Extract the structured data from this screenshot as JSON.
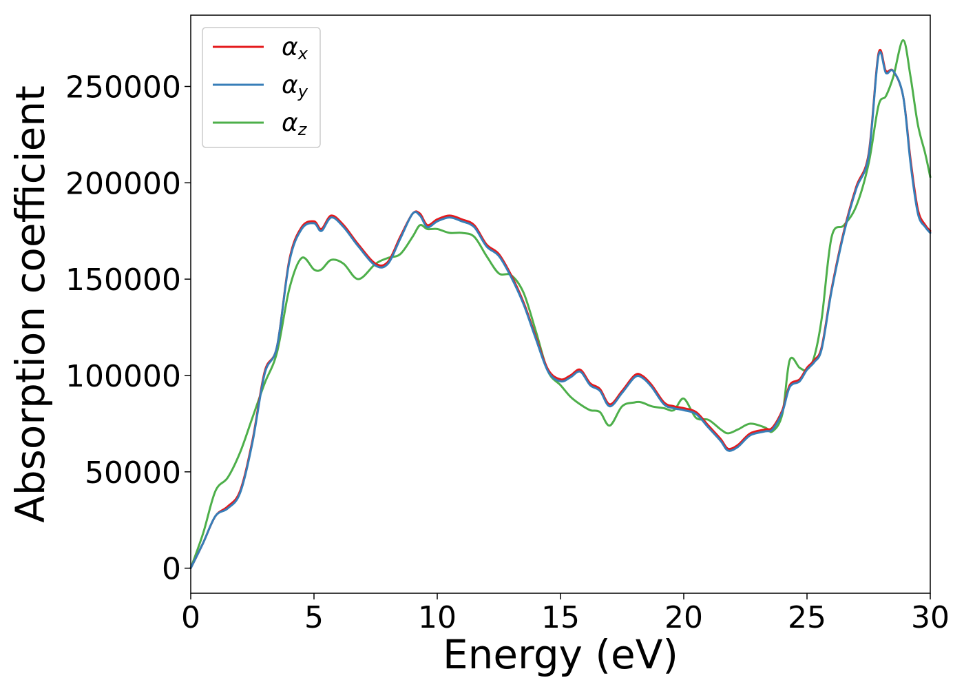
{
  "chart_data": {
    "type": "line",
    "xlabel": "Energy (eV)",
    "ylabel": "Absorption coefficient",
    "xlim": [
      0,
      30
    ],
    "ylim": [
      -13000,
      287000
    ],
    "xticks": [
      0,
      5,
      10,
      15,
      20,
      25,
      30
    ],
    "xtick_labels": [
      "0",
      "5",
      "10",
      "15",
      "20",
      "25",
      "30"
    ],
    "yticks": [
      0,
      50000,
      100000,
      150000,
      200000,
      250000
    ],
    "ytick_labels": [
      "0",
      "50000",
      "100000",
      "150000",
      "200000",
      "250000"
    ],
    "grid": false,
    "legend_position": "top-left",
    "series": [
      {
        "name": "αx",
        "symbol": "α",
        "subscript": "x",
        "color": "#e41a1c",
        "x": [
          0,
          0.5,
          1.0,
          1.5,
          2.0,
          2.5,
          3.0,
          3.5,
          4.0,
          4.5,
          5.0,
          5.3,
          5.7,
          6.2,
          6.8,
          7.5,
          8.0,
          8.5,
          9.0,
          9.3,
          9.6,
          10.0,
          10.5,
          11.0,
          11.5,
          12.0,
          12.5,
          13.0,
          13.5,
          14.0,
          14.5,
          15.0,
          15.4,
          15.8,
          16.2,
          16.6,
          17.0,
          17.5,
          18.0,
          18.3,
          18.7,
          19.2,
          19.6,
          20.0,
          20.5,
          21.0,
          21.5,
          21.8,
          22.2,
          22.7,
          23.3,
          23.6,
          24.0,
          24.3,
          24.7,
          25.0,
          25.3,
          25.6,
          26.0,
          26.5,
          27.0,
          27.5,
          27.9,
          28.2,
          28.5,
          28.9,
          29.2,
          29.5,
          29.8,
          30.0
        ],
        "values": [
          0,
          13000,
          27000,
          32000,
          40000,
          66000,
          102000,
          115000,
          160000,
          177000,
          180000,
          176000,
          183000,
          178000,
          168000,
          158000,
          159000,
          172000,
          184000,
          184000,
          178000,
          181000,
          183000,
          181000,
          178000,
          168000,
          163000,
          152000,
          138000,
          120000,
          103000,
          98000,
          100000,
          103000,
          96000,
          93000,
          85000,
          92000,
          100000,
          100000,
          95000,
          86000,
          84000,
          83000,
          81000,
          74000,
          67000,
          62000,
          64000,
          70000,
          72000,
          73000,
          82000,
          95000,
          98000,
          104000,
          108000,
          115000,
          145000,
          175000,
          198000,
          215000,
          267000,
          258000,
          258000,
          245000,
          212000,
          186000,
          178000,
          175000
        ]
      },
      {
        "name": "αy",
        "symbol": "α",
        "subscript": "y",
        "color": "#377eb8",
        "x": [
          0,
          0.5,
          1.0,
          1.5,
          2.0,
          2.5,
          3.0,
          3.5,
          4.0,
          4.5,
          5.0,
          5.3,
          5.7,
          6.2,
          6.8,
          7.5,
          8.0,
          8.5,
          9.0,
          9.3,
          9.6,
          10.0,
          10.5,
          11.0,
          11.5,
          12.0,
          12.5,
          13.0,
          13.5,
          14.0,
          14.5,
          15.0,
          15.4,
          15.8,
          16.2,
          16.6,
          17.0,
          17.5,
          18.0,
          18.3,
          18.7,
          19.2,
          19.6,
          20.0,
          20.5,
          21.0,
          21.5,
          21.8,
          22.2,
          22.7,
          23.3,
          23.6,
          24.0,
          24.3,
          24.7,
          25.0,
          25.3,
          25.6,
          26.0,
          26.5,
          27.0,
          27.5,
          27.9,
          28.2,
          28.5,
          28.9,
          29.2,
          29.5,
          29.8,
          30.0
        ],
        "values": [
          0,
          13000,
          27000,
          31000,
          39000,
          65000,
          101000,
          115000,
          159000,
          176000,
          179000,
          175000,
          182000,
          177000,
          167000,
          157000,
          158000,
          171000,
          184000,
          183000,
          177000,
          180000,
          182000,
          180000,
          177000,
          167000,
          162000,
          151000,
          137000,
          119000,
          102000,
          97000,
          99000,
          102000,
          95000,
          92000,
          84000,
          91000,
          99000,
          99000,
          94000,
          85000,
          83000,
          82000,
          80000,
          73000,
          66000,
          61000,
          63000,
          69000,
          71000,
          72000,
          81000,
          94000,
          97000,
          103000,
          107000,
          114000,
          144000,
          174000,
          197000,
          214000,
          266000,
          257000,
          258000,
          245000,
          210000,
          184000,
          177000,
          174000
        ]
      },
      {
        "name": "αz",
        "symbol": "α",
        "subscript": "z",
        "color": "#4daf4a",
        "x": [
          0,
          0.5,
          1.0,
          1.5,
          2.0,
          2.5,
          3.0,
          3.5,
          4.0,
          4.5,
          5.0,
          5.3,
          5.7,
          6.2,
          6.8,
          7.5,
          8.0,
          8.5,
          9.0,
          9.3,
          9.6,
          10.0,
          10.5,
          11.0,
          11.5,
          12.0,
          12.5,
          13.0,
          13.5,
          14.0,
          14.5,
          15.0,
          15.4,
          15.8,
          16.2,
          16.6,
          17.0,
          17.5,
          18.0,
          18.3,
          18.7,
          19.2,
          19.6,
          20.0,
          20.5,
          21.0,
          21.5,
          21.8,
          22.2,
          22.7,
          23.3,
          23.6,
          24.0,
          24.3,
          24.7,
          25.0,
          25.3,
          25.6,
          26.0,
          26.5,
          27.0,
          27.5,
          27.9,
          28.2,
          28.5,
          28.9,
          29.2,
          29.5,
          29.8,
          30.0
        ],
        "values": [
          0,
          18000,
          40000,
          47000,
          60000,
          78000,
          96000,
          112000,
          145000,
          161000,
          155000,
          155000,
          160000,
          158000,
          150000,
          158000,
          161000,
          163000,
          172000,
          178000,
          176000,
          176000,
          174000,
          174000,
          172000,
          162000,
          153000,
          152000,
          143000,
          123000,
          102000,
          95000,
          89000,
          85000,
          82000,
          81000,
          74000,
          84000,
          86000,
          86000,
          84000,
          83000,
          82000,
          88000,
          78000,
          77000,
          72000,
          70000,
          72000,
          75000,
          73000,
          71000,
          80000,
          108000,
          104000,
          103000,
          110000,
          130000,
          172000,
          178000,
          188000,
          210000,
          240000,
          245000,
          255000,
          274000,
          255000,
          230000,
          215000,
          203000
        ]
      }
    ]
  }
}
